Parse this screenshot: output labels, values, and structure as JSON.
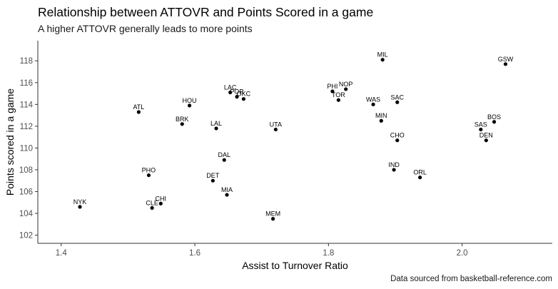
{
  "chart_data": {
    "type": "scatter",
    "title": "Relationship between ATTOVR and Points Scored in a game",
    "subtitle": "A higher ATTOVR generally leads to more points",
    "caption": "Data sourced from basketball-reference.com",
    "xlabel": "Assist to Turnover Ratio",
    "ylabel": "Points scored in a game",
    "xlim": [
      1.365,
      2.135
    ],
    "ylim": [
      101.25,
      119.85
    ],
    "xticks": [
      1.4,
      1.6,
      1.8,
      2.0
    ],
    "xtick_labels": [
      "1.4",
      "1.6",
      "1.8",
      "2.0"
    ],
    "yticks": [
      102,
      104,
      106,
      108,
      110,
      112,
      114,
      116,
      118
    ],
    "ytick_labels": [
      "102",
      "104",
      "106",
      "108",
      "110",
      "112",
      "114",
      "116",
      "118"
    ],
    "grid": false,
    "legend": "none",
    "point_color": "#000000",
    "points": [
      {
        "label": "MIL",
        "x": 1.881,
        "y": 118.1
      },
      {
        "label": "GSW",
        "x": 2.065,
        "y": 117.7
      },
      {
        "label": "NOP",
        "x": 1.826,
        "y": 115.4
      },
      {
        "label": "PHI",
        "x": 1.806,
        "y": 115.2
      },
      {
        "label": "LAC",
        "x": 1.653,
        "y": 115.1
      },
      {
        "label": "POR",
        "x": 1.663,
        "y": 114.7
      },
      {
        "label": "OKC",
        "x": 1.673,
        "y": 114.5
      },
      {
        "label": "TOR",
        "x": 1.815,
        "y": 114.4
      },
      {
        "label": "SAC",
        "x": 1.903,
        "y": 114.2
      },
      {
        "label": "WAS",
        "x": 1.867,
        "y": 114.0
      },
      {
        "label": "HOU",
        "x": 1.592,
        "y": 113.9
      },
      {
        "label": "ATL",
        "x": 1.516,
        "y": 113.3
      },
      {
        "label": "MIN",
        "x": 1.879,
        "y": 112.5
      },
      {
        "label": "BOS",
        "x": 2.048,
        "y": 112.4
      },
      {
        "label": "BRK",
        "x": 1.581,
        "y": 112.2
      },
      {
        "label": "LAL",
        "x": 1.632,
        "y": 111.8
      },
      {
        "label": "UTA",
        "x": 1.721,
        "y": 111.7
      },
      {
        "label": "SAS",
        "x": 2.028,
        "y": 111.7
      },
      {
        "label": "CHO",
        "x": 1.903,
        "y": 110.7
      },
      {
        "label": "DEN",
        "x": 2.036,
        "y": 110.7
      },
      {
        "label": "DAL",
        "x": 1.644,
        "y": 108.9
      },
      {
        "label": "IND",
        "x": 1.898,
        "y": 108.0
      },
      {
        "label": "PHO",
        "x": 1.531,
        "y": 107.5
      },
      {
        "label": "ORL",
        "x": 1.937,
        "y": 107.3
      },
      {
        "label": "DET",
        "x": 1.627,
        "y": 107.0
      },
      {
        "label": "MIA",
        "x": 1.648,
        "y": 105.7
      },
      {
        "label": "CHI",
        "x": 1.549,
        "y": 104.9
      },
      {
        "label": "NYK",
        "x": 1.428,
        "y": 104.6
      },
      {
        "label": "CLE",
        "x": 1.536,
        "y": 104.5
      },
      {
        "label": "MEM",
        "x": 1.717,
        "y": 103.5
      }
    ]
  }
}
